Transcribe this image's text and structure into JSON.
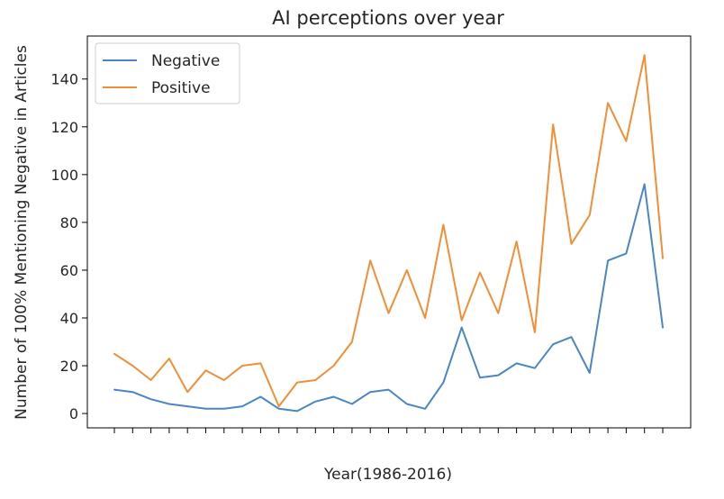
{
  "chart_data": {
    "type": "line",
    "title": "AI perceptions over year",
    "xlabel": "Year(1986-2016)",
    "ylabel": "Number of 100% Mentioning Negative in Articles",
    "x": [
      1986,
      1987,
      1988,
      1989,
      1990,
      1991,
      1992,
      1993,
      1994,
      1995,
      1996,
      1997,
      1998,
      1999,
      2000,
      2001,
      2002,
      2003,
      2004,
      2005,
      2006,
      2007,
      2008,
      2009,
      2010,
      2011,
      2012,
      2013,
      2014,
      2015,
      2016
    ],
    "xticks_labeled": false,
    "ylim": [
      -6,
      158
    ],
    "yticks": [
      0,
      20,
      40,
      60,
      80,
      100,
      120,
      140
    ],
    "grid": false,
    "legend": "top-left",
    "series": [
      {
        "name": "Negative",
        "color": "#4a86c5",
        "values": [
          10,
          9,
          6,
          4,
          3,
          2,
          2,
          3,
          7,
          2,
          1,
          5,
          7,
          4,
          9,
          10,
          4,
          2,
          13,
          36,
          15,
          16,
          21,
          19,
          29,
          32,
          17,
          64,
          67,
          96,
          36
        ]
      },
      {
        "name": "Positive",
        "color": "#f28e35",
        "values": [
          25,
          20,
          14,
          23,
          9,
          18,
          14,
          20,
          21,
          3,
          13,
          14,
          20,
          30,
          64,
          42,
          60,
          40,
          79,
          39,
          59,
          42,
          72,
          34,
          121,
          71,
          83,
          130,
          114,
          150,
          65
        ]
      }
    ]
  }
}
